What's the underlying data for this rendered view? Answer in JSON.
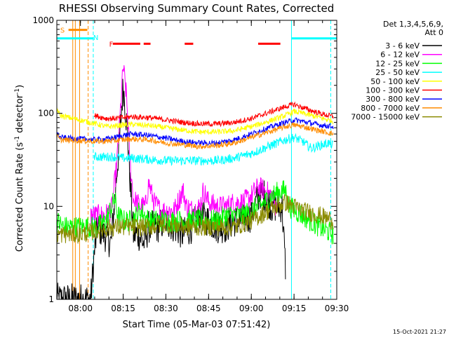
{
  "chart_data": {
    "type": "line",
    "title": "RHESSI Observing Summary Count Rates, Corrected",
    "xlabel": "Start Time (05-Mar-03 07:51:42)",
    "ylabel_main": "Corrected Count Rate (s",
    "ylabel_sup1": "-1",
    "ylabel_mid": " detector",
    "ylabel_sup2": "-1",
    "ylabel_end": ")",
    "y_scale": "log",
    "ylim": [
      1,
      1000
    ],
    "xlim": [
      7.8617,
      9.5
    ],
    "y_ticks": [
      {
        "v": 1,
        "label": "1"
      },
      {
        "v": 10,
        "label": "10"
      },
      {
        "v": 100,
        "label": "100"
      },
      {
        "v": 1000,
        "label": "1000"
      }
    ],
    "x_ticks": [
      {
        "v": 8.0,
        "label": "08:00"
      },
      {
        "v": 8.25,
        "label": "08:15"
      },
      {
        "v": 8.5,
        "label": "08:30"
      },
      {
        "v": 8.75,
        "label": "08:45"
      },
      {
        "v": 9.0,
        "label": "09:00"
      },
      {
        "v": 9.25,
        "label": "09:15"
      },
      {
        "v": 9.5,
        "label": "09:30"
      }
    ],
    "legend_header": [
      "Det 1,3,4,5,6,9,",
      "Att 0"
    ],
    "legend_position": "right",
    "timestamp": "15-Oct-2021 21:27",
    "series": [
      {
        "name": "3 - 6 keV",
        "color": "#000000",
        "noise": 0.18,
        "points": [
          [
            7.86,
            1
          ],
          [
            7.88,
            1
          ],
          [
            7.93,
            1
          ],
          [
            7.96,
            1
          ],
          [
            7.99,
            1
          ],
          [
            8.02,
            1
          ],
          [
            8.06,
            1
          ],
          [
            8.08,
            3
          ],
          [
            8.1,
            6
          ],
          [
            8.14,
            5
          ],
          [
            8.18,
            4
          ],
          [
            8.21,
            20
          ],
          [
            8.23,
            55
          ],
          [
            8.25,
            200
          ],
          [
            8.27,
            80
          ],
          [
            8.29,
            20
          ],
          [
            8.31,
            5
          ],
          [
            8.34,
            5
          ],
          [
            8.37,
            4
          ],
          [
            8.4,
            6
          ],
          [
            8.45,
            6
          ],
          [
            8.5,
            7
          ],
          [
            8.55,
            6
          ],
          [
            8.6,
            5
          ],
          [
            8.65,
            6
          ],
          [
            8.7,
            8
          ],
          [
            8.75,
            7
          ],
          [
            8.8,
            6
          ],
          [
            8.85,
            6
          ],
          [
            8.9,
            7
          ],
          [
            8.95,
            7
          ],
          [
            9.0,
            8
          ],
          [
            9.05,
            14
          ],
          [
            9.08,
            13
          ],
          [
            9.12,
            10
          ],
          [
            9.18,
            10
          ],
          [
            9.2,
            2.2
          ]
        ]
      },
      {
        "name": "6 - 12 keV",
        "color": "#ff00ff",
        "noise": 0.12,
        "points": [
          [
            8.06,
            8
          ],
          [
            8.1,
            8
          ],
          [
            8.14,
            8
          ],
          [
            8.18,
            9
          ],
          [
            8.21,
            25
          ],
          [
            8.23,
            80
          ],
          [
            8.25,
            320
          ],
          [
            8.27,
            150
          ],
          [
            8.29,
            30
          ],
          [
            8.31,
            12
          ],
          [
            8.35,
            10
          ],
          [
            8.38,
            10
          ],
          [
            8.4,
            18
          ],
          [
            8.43,
            11
          ],
          [
            8.47,
            9
          ],
          [
            8.5,
            9
          ],
          [
            8.55,
            9
          ],
          [
            8.6,
            15
          ],
          [
            8.62,
            10
          ],
          [
            8.66,
            9
          ],
          [
            8.7,
            10
          ],
          [
            8.72,
            15
          ],
          [
            8.75,
            11
          ],
          [
            8.8,
            10
          ],
          [
            8.85,
            10
          ],
          [
            8.9,
            11
          ],
          [
            8.95,
            11
          ],
          [
            9.0,
            13
          ],
          [
            9.04,
            16
          ],
          [
            9.08,
            15
          ],
          [
            9.12,
            13
          ],
          [
            9.15,
            9
          ]
        ]
      },
      {
        "name": "12 - 25 keV",
        "color": "#00ff00",
        "noise": 0.12,
        "points": [
          [
            7.86,
            7
          ],
          [
            7.9,
            6
          ],
          [
            7.95,
            6
          ],
          [
            8.0,
            6
          ],
          [
            8.05,
            6
          ],
          [
            8.1,
            6
          ],
          [
            8.15,
            7
          ],
          [
            8.2,
            12
          ],
          [
            8.22,
            8
          ],
          [
            8.25,
            7
          ],
          [
            8.3,
            7
          ],
          [
            8.35,
            9
          ],
          [
            8.4,
            7
          ],
          [
            8.45,
            7
          ],
          [
            8.5,
            7
          ],
          [
            8.55,
            7
          ],
          [
            8.6,
            7
          ],
          [
            8.65,
            7
          ],
          [
            8.7,
            7
          ],
          [
            8.75,
            7
          ],
          [
            8.8,
            7
          ],
          [
            8.85,
            8
          ],
          [
            8.9,
            8
          ],
          [
            8.95,
            8
          ],
          [
            9.0,
            9
          ],
          [
            9.05,
            10
          ],
          [
            9.1,
            12
          ],
          [
            9.15,
            14
          ],
          [
            9.2,
            15
          ],
          [
            9.22,
            10
          ],
          [
            9.3,
            8
          ],
          [
            9.4,
            6
          ],
          [
            9.48,
            5
          ]
        ]
      },
      {
        "name": "25 - 50 keV",
        "color": "#00ffff",
        "noise": 0.05,
        "points": [
          [
            8.08,
            34
          ],
          [
            8.15,
            34
          ],
          [
            8.2,
            34
          ],
          [
            8.25,
            33
          ],
          [
            8.3,
            33
          ],
          [
            8.4,
            32
          ],
          [
            8.5,
            31
          ],
          [
            8.6,
            31
          ],
          [
            8.7,
            31
          ],
          [
            8.8,
            31
          ],
          [
            8.9,
            33
          ],
          [
            9.0,
            37
          ],
          [
            9.1,
            44
          ],
          [
            9.2,
            52
          ],
          [
            9.25,
            55
          ],
          [
            9.3,
            50
          ],
          [
            9.35,
            42
          ],
          [
            9.4,
            45
          ],
          [
            9.45,
            48
          ],
          [
            9.48,
            45
          ]
        ]
      },
      {
        "name": "50 - 100 keV",
        "color": "#ffff00",
        "noise": 0.03,
        "points": [
          [
            7.86,
            115
          ],
          [
            7.88,
            95
          ],
          [
            8.08,
            78
          ],
          [
            8.15,
            72
          ],
          [
            8.2,
            73
          ],
          [
            8.25,
            75
          ],
          [
            8.3,
            76
          ],
          [
            8.4,
            74
          ],
          [
            8.5,
            70
          ],
          [
            8.6,
            66
          ],
          [
            8.7,
            63
          ],
          [
            8.8,
            63
          ],
          [
            8.9,
            65
          ],
          [
            9.0,
            72
          ],
          [
            9.1,
            82
          ],
          [
            9.2,
            95
          ],
          [
            9.25,
            105
          ],
          [
            9.3,
            100
          ],
          [
            9.4,
            90
          ],
          [
            9.48,
            82
          ]
        ]
      },
      {
        "name": "100 - 300 keV",
        "color": "#ff0000",
        "noise": 0.03,
        "points": [
          [
            8.08,
            95
          ],
          [
            8.15,
            88
          ],
          [
            8.2,
            88
          ],
          [
            8.25,
            90
          ],
          [
            8.3,
            92
          ],
          [
            8.4,
            90
          ],
          [
            8.5,
            85
          ],
          [
            8.6,
            80
          ],
          [
            8.7,
            77
          ],
          [
            8.8,
            77
          ],
          [
            8.9,
            80
          ],
          [
            9.0,
            88
          ],
          [
            9.1,
            102
          ],
          [
            9.2,
            118
          ],
          [
            9.25,
            125
          ],
          [
            9.3,
            115
          ],
          [
            9.4,
            100
          ],
          [
            9.48,
            92
          ]
        ]
      },
      {
        "name": "300 - 800 keV",
        "color": "#0000ff",
        "noise": 0.03,
        "points": [
          [
            7.86,
            62
          ],
          [
            7.88,
            55
          ],
          [
            8.08,
            52
          ],
          [
            8.15,
            53
          ],
          [
            8.2,
            55
          ],
          [
            8.25,
            58
          ],
          [
            8.3,
            60
          ],
          [
            8.4,
            58
          ],
          [
            8.5,
            54
          ],
          [
            8.6,
            50
          ],
          [
            8.7,
            48
          ],
          [
            8.8,
            48
          ],
          [
            8.9,
            52
          ],
          [
            9.0,
            60
          ],
          [
            9.1,
            70
          ],
          [
            9.2,
            80
          ],
          [
            9.25,
            85
          ],
          [
            9.3,
            82
          ],
          [
            9.4,
            75
          ],
          [
            9.48,
            72
          ]
        ]
      },
      {
        "name": "800 - 7000 keV",
        "color": "#ff8c00",
        "noise": 0.03,
        "points": [
          [
            7.86,
            58
          ],
          [
            7.88,
            52
          ],
          [
            8.08,
            50
          ],
          [
            8.15,
            50
          ],
          [
            8.2,
            51
          ],
          [
            8.25,
            52
          ],
          [
            8.3,
            53
          ],
          [
            8.4,
            52
          ],
          [
            8.5,
            48
          ],
          [
            8.6,
            46
          ],
          [
            8.7,
            44
          ],
          [
            8.8,
            45
          ],
          [
            8.9,
            48
          ],
          [
            9.0,
            55
          ],
          [
            9.1,
            63
          ],
          [
            9.2,
            72
          ],
          [
            9.25,
            75
          ],
          [
            9.3,
            72
          ],
          [
            9.4,
            65
          ],
          [
            9.48,
            60
          ]
        ]
      },
      {
        "name": "7000 - 15000 keV",
        "color": "#8b8b00",
        "noise": 0.1,
        "points": [
          [
            7.86,
            5
          ],
          [
            7.9,
            5
          ],
          [
            8.0,
            5
          ],
          [
            8.1,
            5.5
          ],
          [
            8.2,
            6
          ],
          [
            8.3,
            6
          ],
          [
            8.4,
            6
          ],
          [
            8.5,
            6.5
          ],
          [
            8.6,
            6
          ],
          [
            8.7,
            6
          ],
          [
            8.8,
            6
          ],
          [
            8.9,
            6
          ],
          [
            9.0,
            7
          ],
          [
            9.1,
            9
          ],
          [
            9.2,
            11
          ],
          [
            9.25,
            10
          ],
          [
            9.3,
            9
          ],
          [
            9.4,
            8
          ],
          [
            9.48,
            7
          ]
        ]
      }
    ],
    "bar_segments": [
      {
        "color": "#00ffff",
        "y": 640,
        "x0": 7.8617,
        "x1": 8.0733
      },
      {
        "color": "#00ffff",
        "y": 640,
        "x0": 9.235,
        "x1": 9.5
      },
      {
        "color": "#ff8c00",
        "y": 790,
        "x0": 7.93,
        "x1": 8.04
      },
      {
        "color": "#ff0000",
        "y": 560,
        "x0": 8.19,
        "x1": 8.35
      },
      {
        "color": "#ff0000",
        "y": 560,
        "x0": 8.37,
        "x1": 8.41
      },
      {
        "color": "#ff0000",
        "y": 560,
        "x0": 8.61,
        "x1": 8.66
      },
      {
        "color": "#ff0000",
        "y": 560,
        "x0": 9.04,
        "x1": 9.17
      }
    ],
    "bar_labels": [
      {
        "text": "S",
        "color": "#ff8c00",
        "x": 7.895,
        "y": 790
      },
      {
        "text": "N",
        "color": "#00ffff",
        "x": 8.09,
        "y": 660
      },
      {
        "text": "F",
        "color": "#ff0000",
        "x": 8.18,
        "y": 560
      }
    ],
    "vertical_lines": [
      {
        "x": 7.8617,
        "color": "#00ffff",
        "dashed": false
      },
      {
        "x": 7.955,
        "color": "#ff8c00",
        "dashed": false
      },
      {
        "x": 7.97,
        "color": "#ff8c00",
        "dashed": false
      },
      {
        "x": 7.995,
        "color": "#ff8c00",
        "dashed": false
      },
      {
        "x": 8.045,
        "color": "#ff8c00",
        "dashed": true
      },
      {
        "x": 8.075,
        "color": "#00ffff",
        "dashed": true
      },
      {
        "x": 9.235,
        "color": "#00ffff",
        "dashed": false
      },
      {
        "x": 9.465,
        "color": "#00ffff",
        "dashed": true
      }
    ]
  }
}
